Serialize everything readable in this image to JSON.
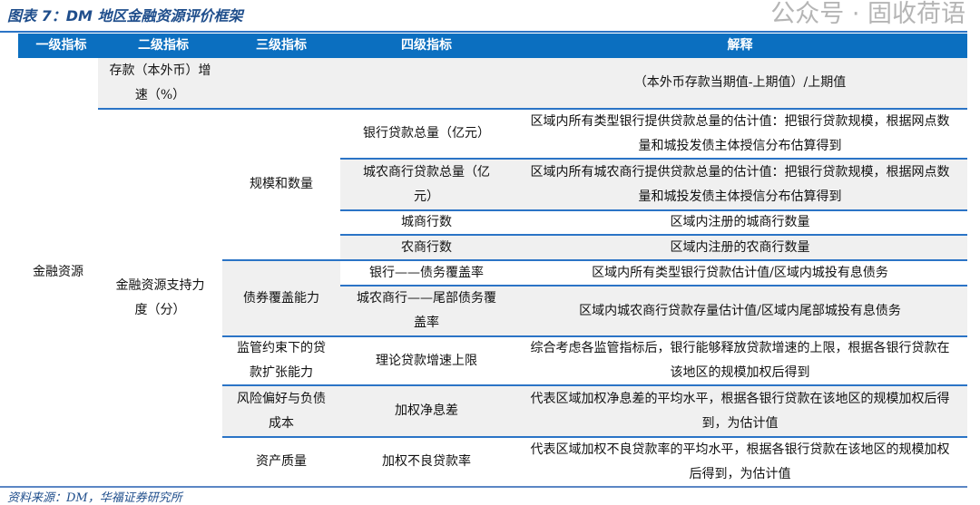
{
  "title": "图表 7：DM 地区金融资源评价框架",
  "headers": [
    "一级指标",
    "二级指标",
    "三级指标",
    "四级指标",
    "解释"
  ],
  "level1": "金融资源",
  "deposit": {
    "level2": "存款（本外币）增速（%）",
    "explain": "（本外币存款当期值-上期值）/上期值"
  },
  "level2_support": "金融资源支持力度（分）",
  "groups": [
    {
      "level3": "规模和数量",
      "items": [
        {
          "level4": "银行贷款总量（亿元）",
          "explain": "区域内所有类型银行提供贷款总量的估计值：把银行贷款规模，根据网点数量和城投发债主体授信分布估算得到"
        },
        {
          "level4": "城农商行贷款总量（亿元）",
          "explain": "区域内所有城农商行提供贷款总量的估计值：把银行贷款规模，根据网点数量和城投发债主体授信分布估算得到"
        },
        {
          "level4": "城商行数",
          "explain": "区域内注册的城商行数量"
        },
        {
          "level4": "农商行数",
          "explain": "区域内注册的农商行数量"
        }
      ]
    },
    {
      "level3": "债券覆盖能力",
      "items": [
        {
          "level4": "银行——债务覆盖率",
          "explain": "区域内所有类型银行贷款估计值/区域内城投有息债务"
        },
        {
          "level4": "城农商行——尾部债务覆盖率",
          "explain": "区域内城农商行贷款存量估计值/区域内尾部城投有息债务"
        }
      ]
    },
    {
      "level3": "监管约束下的贷款扩张能力",
      "items": [
        {
          "level4": "理论贷款增速上限",
          "explain": "综合考虑各监管指标后，银行能够释放贷款增速的上限，根据各银行贷款在该地区的规模加权后得到"
        }
      ]
    },
    {
      "level3": "风险偏好与负债成本",
      "items": [
        {
          "level4": "加权净息差",
          "explain": "代表区域加权净息差的平均水平，根据各银行贷款在该地区的规模加权后得到，为估计值"
        }
      ]
    },
    {
      "level3": "资产质量",
      "items": [
        {
          "level4": "加权不良贷款率",
          "explain": "代表区域加权不良贷款率的平均水平，根据各银行贷款在该地区的规模加权后得到，为估计值"
        }
      ]
    }
  ],
  "source": "资料来源：DM，华福证券研究所",
  "watermark": "公众号 · 固收荷语",
  "colors": {
    "header_bg": "#0b6fc0",
    "row_gray": "#f0f0f0",
    "rule": "#2b74c6",
    "title": "#1f4e8c"
  }
}
